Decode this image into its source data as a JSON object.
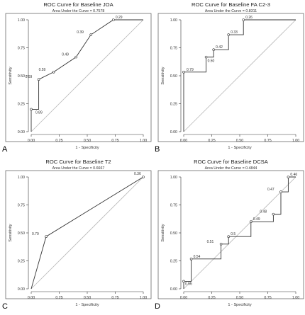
{
  "chart_data": [
    {
      "type": "line",
      "panel_letter": "A",
      "title": "ROC Curve for Baseline JOA",
      "subtitle": "Area Under the Curve = 0.7578",
      "xlabel": "1 - Specificity",
      "ylabel": "Sensitivity",
      "xlim": [
        0,
        1
      ],
      "ylim": [
        0,
        1
      ],
      "xticks": [
        "0.00",
        "0.25",
        "0.50",
        "0.75",
        "1.00"
      ],
      "yticks": [
        "0.00",
        "0.25",
        "0.50",
        "0.75",
        "1.00"
      ],
      "grid": false,
      "reference_line": true,
      "curve": {
        "x": [
          0,
          0,
          0.067,
          0.067,
          0.067,
          0.2,
          0.4,
          0.533,
          0.733,
          1
        ],
        "y": [
          0,
          0.2,
          0.2,
          0.267,
          0.467,
          0.533,
          0.667,
          0.867,
          1,
          1
        ]
      },
      "point_labels": [
        {
          "x": 0,
          "y": 0.2,
          "label": "0.89",
          "dx": 6,
          "dy": 6
        },
        {
          "x": 0.067,
          "y": 0.467,
          "label": "0.69",
          "dx": -19,
          "dy": -2
        },
        {
          "x": 0.2,
          "y": 0.533,
          "label": "0.59",
          "dx": -21,
          "dy": -2
        },
        {
          "x": 0.4,
          "y": 0.667,
          "label": "0.49",
          "dx": -20,
          "dy": -2
        },
        {
          "x": 0.533,
          "y": 0.867,
          "label": "0.39",
          "dx": -20,
          "dy": -2
        },
        {
          "x": 0.733,
          "y": 1,
          "label": "0.29",
          "dx": 3,
          "dy": -2
        }
      ]
    },
    {
      "type": "line",
      "panel_letter": "B",
      "title": "ROC Curve for Baseline FA C2-3",
      "subtitle": "Area Under the Curve = 0.8311",
      "xlabel": "1 - Specificity",
      "ylabel": "Sensitivity",
      "xlim": [
        0,
        1
      ],
      "ylim": [
        0,
        1
      ],
      "xticks": [
        "0.00",
        "0.25",
        "0.50",
        "0.75",
        "1.00"
      ],
      "yticks": [
        "0.00",
        "0.25",
        "0.50",
        "0.75",
        "1.00"
      ],
      "grid": false,
      "reference_line": true,
      "curve": {
        "x": [
          0,
          0,
          0.2,
          0.2,
          0.267,
          0.267,
          0.4,
          0.4,
          0.533,
          0.533,
          1
        ],
        "y": [
          0,
          0.533,
          0.533,
          0.667,
          0.667,
          0.733,
          0.733,
          0.867,
          0.867,
          1,
          1
        ]
      },
      "point_labels": [
        {
          "x": 0,
          "y": 0.533,
          "label": "0.79",
          "dx": 4,
          "dy": -2
        },
        {
          "x": 0.2,
          "y": 0.667,
          "label": "0.50",
          "dx": 2,
          "dy": 7
        },
        {
          "x": 0.267,
          "y": 0.733,
          "label": "0.42",
          "dx": 3,
          "dy": -2
        },
        {
          "x": 0.4,
          "y": 0.867,
          "label": "0.33",
          "dx": 3,
          "dy": -2
        },
        {
          "x": 0.533,
          "y": 1,
          "label": "0.26",
          "dx": 3,
          "dy": -2
        }
      ]
    },
    {
      "type": "line",
      "panel_letter": "C",
      "title": "ROC Curve for Baseline T2",
      "subtitle": "Area Under the Curve = 0.6667",
      "xlabel": "1 - Specificity",
      "ylabel": "Sensitivity",
      "xlim": [
        0,
        1
      ],
      "ylim": [
        0,
        1
      ],
      "xticks": [
        "0.00",
        "0.25",
        "0.50",
        "0.75",
        "1.00"
      ],
      "yticks": [
        "0.00",
        "0.25",
        "0.50",
        "0.75",
        "1.00"
      ],
      "grid": false,
      "reference_line": true,
      "curve": {
        "x": [
          0,
          0.133,
          1
        ],
        "y": [
          0,
          0.467,
          1
        ]
      },
      "point_labels": [
        {
          "x": 0.133,
          "y": 0.467,
          "label": "0.79",
          "dx": -20,
          "dy": -2
        },
        {
          "x": 1,
          "y": 1,
          "label": "0.36",
          "dx": -13,
          "dy": -3
        }
      ]
    },
    {
      "type": "line",
      "panel_letter": "D",
      "title": "ROC Curve for Baseline DCSA",
      "subtitle": "Area Under the Curve = 0.4844",
      "xlabel": "1 - Specificity",
      "ylabel": "Sensitivity",
      "xlim": [
        0,
        1
      ],
      "ylim": [
        0,
        1
      ],
      "xticks": [
        "0.00",
        "0.25",
        "0.50",
        "0.75",
        "1.00"
      ],
      "yticks": [
        "0.00",
        "0.25",
        "0.50",
        "0.75",
        "1.00"
      ],
      "grid": false,
      "reference_line": true,
      "curve": {
        "x": [
          0,
          0,
          0.067,
          0.067,
          0.333,
          0.333,
          0.4,
          0.4,
          0.6,
          0.6,
          0.8,
          0.8,
          0.867,
          0.867,
          0.933,
          0.933,
          1
        ],
        "y": [
          0,
          0.067,
          0.067,
          0.267,
          0.267,
          0.4,
          0.4,
          0.467,
          0.467,
          0.6,
          0.6,
          0.667,
          0.667,
          0.867,
          0.867,
          1,
          1
        ]
      },
      "point_labels": [
        {
          "x": 0,
          "y": 0.067,
          "label": "0.56",
          "dx": 2,
          "dy": 5
        },
        {
          "x": 0.067,
          "y": 0.267,
          "label": "0.54",
          "dx": 3,
          "dy": -2
        },
        {
          "x": 0.333,
          "y": 0.4,
          "label": "0.51",
          "dx": -20,
          "dy": -2
        },
        {
          "x": 0.4,
          "y": 0.467,
          "label": "0.5",
          "dx": 3,
          "dy": -2
        },
        {
          "x": 0.6,
          "y": 0.6,
          "label": "0.49",
          "dx": 3,
          "dy": -2
        },
        {
          "x": 0.8,
          "y": 0.667,
          "label": "0.48",
          "dx": -19,
          "dy": -2
        },
        {
          "x": 0.867,
          "y": 0.867,
          "label": "0.47",
          "dx": -19,
          "dy": -2
        },
        {
          "x": 0.933,
          "y": 1,
          "label": "0.46",
          "dx": 3,
          "dy": -2
        }
      ]
    }
  ]
}
